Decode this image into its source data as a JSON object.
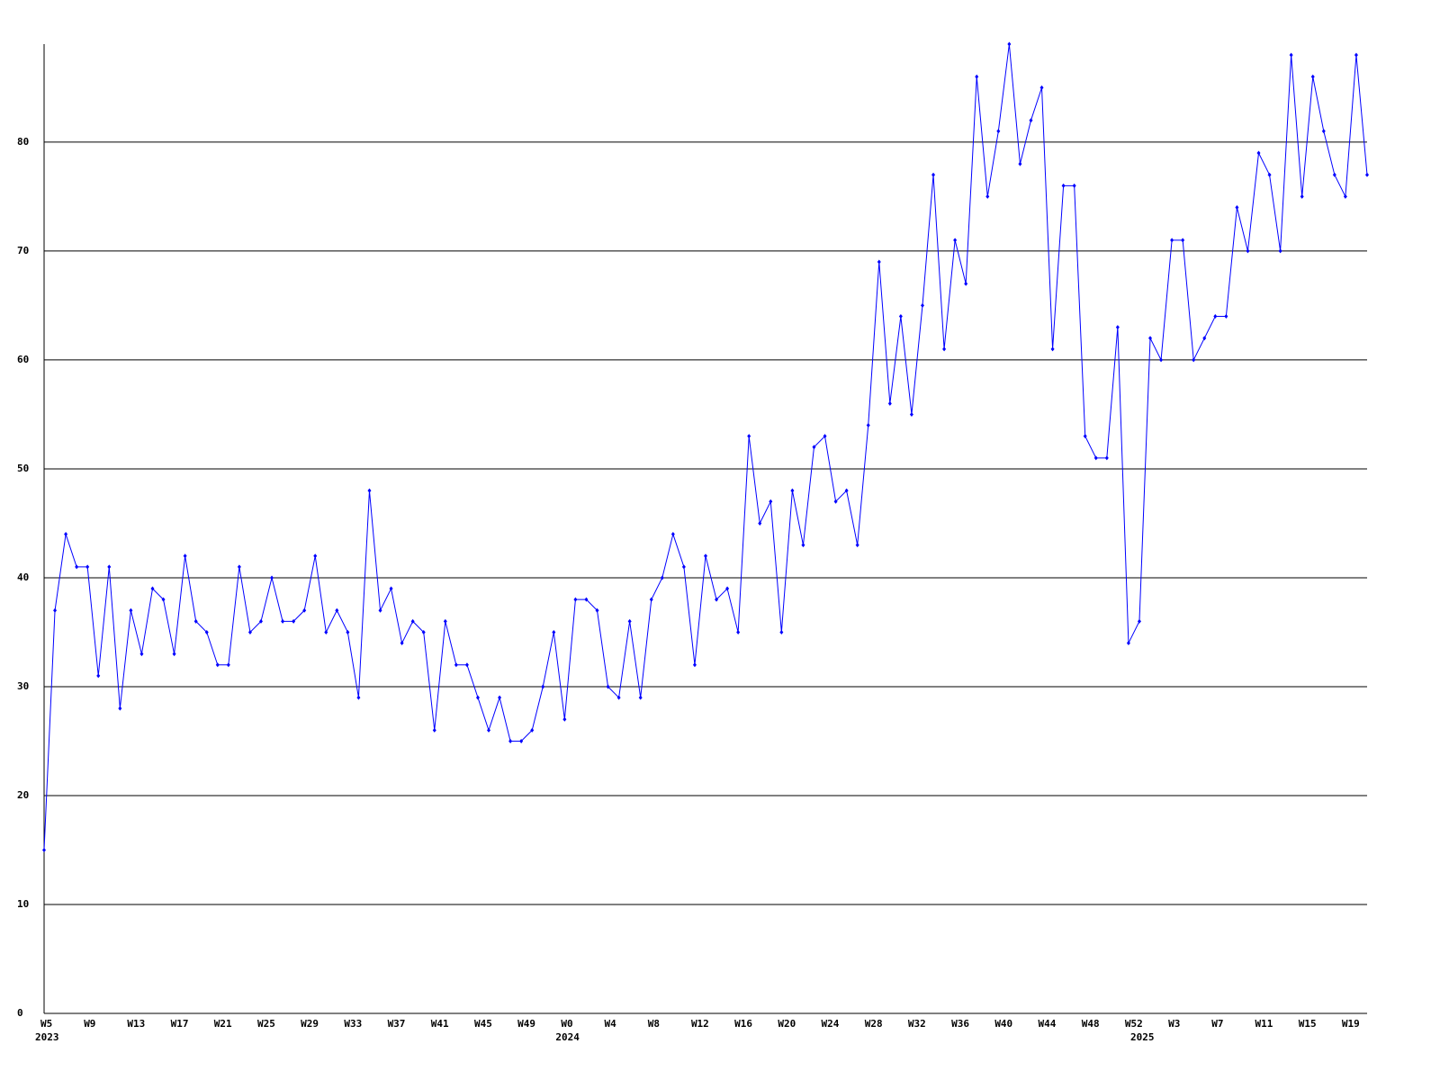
{
  "chart_data": {
    "type": "line",
    "categories": [
      "W5",
      null,
      null,
      null,
      "W9",
      null,
      null,
      null,
      "W13",
      null,
      null,
      null,
      "W17",
      null,
      null,
      null,
      "W21",
      null,
      null,
      null,
      "W25",
      null,
      null,
      null,
      "W29",
      null,
      null,
      null,
      "W33",
      null,
      null,
      null,
      "W37",
      null,
      null,
      null,
      "W41",
      null,
      null,
      null,
      "W45",
      null,
      null,
      null,
      "W49",
      null,
      null,
      null,
      "W0",
      null,
      null,
      null,
      "W4",
      null,
      null,
      null,
      "W8",
      null,
      null,
      null,
      "W12",
      null,
      null,
      null,
      "W16",
      null,
      null,
      null,
      "W20",
      null,
      null,
      null,
      "W24",
      null,
      null,
      null,
      "W28",
      null,
      null,
      null,
      "W32",
      null,
      null,
      null,
      "W36",
      null,
      null,
      null,
      "W40",
      null,
      null,
      null,
      "W44",
      null,
      null,
      null,
      "W48",
      null,
      null,
      null,
      "W52",
      null,
      null,
      null,
      "W3",
      null,
      null,
      null,
      "W7",
      null,
      null,
      null,
      "W11",
      null,
      null,
      null,
      "W15",
      null,
      null,
      null,
      "W19",
      null,
      null
    ],
    "years": [
      "2023",
      null,
      null,
      null,
      null,
      null,
      null,
      null,
      null,
      null,
      null,
      null,
      null,
      null,
      null,
      null,
      null,
      null,
      null,
      null,
      null,
      null,
      null,
      null,
      null,
      null,
      null,
      null,
      null,
      null,
      null,
      null,
      null,
      null,
      null,
      null,
      null,
      null,
      null,
      null,
      null,
      null,
      null,
      null,
      null,
      null,
      null,
      null,
      "2024",
      null,
      null,
      null,
      null,
      null,
      null,
      null,
      null,
      null,
      null,
      null,
      null,
      null,
      null,
      null,
      null,
      null,
      null,
      null,
      null,
      null,
      null,
      null,
      null,
      null,
      null,
      null,
      null,
      null,
      null,
      null,
      null,
      null,
      null,
      null,
      null,
      null,
      null,
      null,
      null,
      null,
      null,
      null,
      null,
      null,
      null,
      null,
      null,
      null,
      null,
      null,
      null,
      "2025",
      null,
      null,
      null,
      null,
      null,
      null,
      null,
      null,
      null,
      null,
      null,
      null,
      null,
      null,
      null,
      null,
      null,
      null,
      null,
      null
    ],
    "series": [
      {
        "color": "#0000ff",
        "values": [
          15,
          37,
          44,
          41,
          41,
          31,
          41,
          28,
          37,
          33,
          39,
          38,
          33,
          42,
          36,
          35,
          32,
          32,
          41,
          35,
          36,
          40,
          36,
          36,
          37,
          42,
          35,
          37,
          35,
          29,
          48,
          37,
          39,
          34,
          36,
          35,
          26,
          36,
          32,
          32,
          29,
          26,
          29,
          25,
          25,
          26,
          30,
          35,
          27,
          38,
          38,
          37,
          30,
          29,
          36,
          29,
          38,
          40,
          44,
          41,
          32,
          42,
          38,
          39,
          35,
          53,
          45,
          47,
          35,
          48,
          43,
          52,
          53,
          47,
          48,
          43,
          54,
          69,
          56,
          64,
          55,
          65,
          77,
          61,
          71,
          67,
          86,
          75,
          81,
          89,
          78,
          82,
          85,
          61,
          76,
          76,
          53,
          51,
          51,
          63,
          34,
          36,
          62,
          60,
          71,
          71,
          60,
          62,
          64,
          64,
          74,
          70,
          79,
          77,
          70,
          88,
          75,
          86,
          81,
          77,
          75,
          88,
          77
        ]
      }
    ],
    "ylim": [
      0,
      89
    ],
    "yticks": [
      0,
      10,
      20,
      30,
      40,
      50,
      60,
      70,
      80
    ],
    "grid": true
  }
}
